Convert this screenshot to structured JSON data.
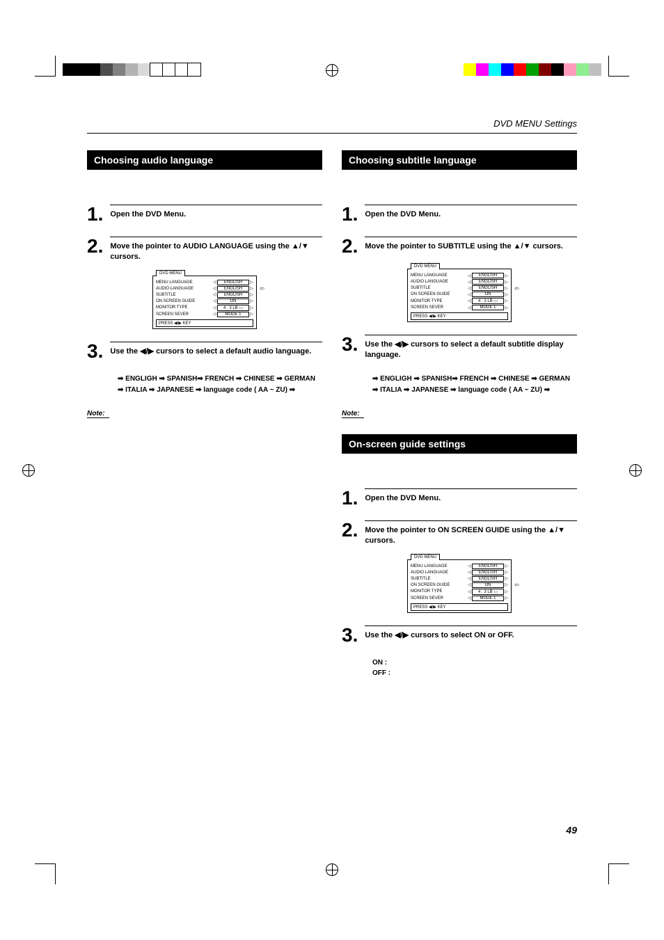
{
  "header": {
    "section": "DVD MENU Settings"
  },
  "page_number": "49",
  "colorbar_left": [
    "#000000",
    "#000000",
    "#000000",
    "#4d4d4d",
    "#808080",
    "#b3b3b3",
    "#d9d9d9",
    "#ffffff",
    "#ffffff",
    "#ffffff",
    "#ffffff"
  ],
  "colorbar_right": [
    "#ffff00",
    "#ff00ff",
    "#00ffff",
    "#0000ff",
    "#ff0000",
    "#00a000",
    "#800000",
    "#000000",
    "#ff9bbd",
    "#90ee90",
    "#c0c0c0"
  ],
  "left": {
    "bar": "Choosing audio language",
    "step1": "Open the DVD Menu.",
    "step2": "Move the pointer to AUDIO LANGUAGE using the ▲/▼ cursors.",
    "step3": "Use the ◀/▶ cursors to select a default audio language.",
    "seq1": "➡ ENGLIGH ➡ SPANISH➡ FRENCH ➡ CHINESE ➡ GERMAN",
    "seq2": "➡ ITALIA ➡ JAPANESE ➡ language code ( AA ~ ZU) ➡",
    "note": "Note:"
  },
  "right_top": {
    "bar": "Choosing subtitle language",
    "step1": "Open the DVD Menu.",
    "step2": "Move the pointer to SUBTITLE using the ▲/▼ cursors.",
    "step3": "Use the ◀/▶ cursors to select a default subtitle display language.",
    "seq1": "➡ ENGLIGH ➡ SPANISH➡ FRENCH ➡ CHINESE ➡ GERMAN",
    "seq2": "➡ ITALIA ➡ JAPANESE ➡ language code ( AA ~ ZU) ➡",
    "note": "Note:"
  },
  "right_bottom": {
    "bar": "On-screen guide settings",
    "step1": "Open the DVD Menu.",
    "step2": "Move the pointer to ON SCREEN GUIDE using the ▲/▼ cursors.",
    "step3": "Use the ◀/▶ cursors to select ON or OFF.",
    "on": "ON  :",
    "off": "OFF :"
  },
  "menu": {
    "title": "DVD MENU",
    "rows": [
      {
        "label": "MENU LANGUAGE",
        "value": "ENGLISH"
      },
      {
        "label": "AUDIO LANGUAGE",
        "value": "ENGLISH"
      },
      {
        "label": "SUBTITLE",
        "value": "ENGLISH"
      },
      {
        "label": "ON SCREEN GUIDE",
        "value": "ON"
      },
      {
        "label": "MONITOR TYPE",
        "value": "4 : 3 LB ▭"
      },
      {
        "label": "SCREEN SEVER",
        "value": "MODE 1"
      }
    ],
    "footer": "PRESS ◀/▶ KEY"
  },
  "menu_highlight": {
    "audio": 1,
    "subtitle": 2,
    "guide": 3
  }
}
